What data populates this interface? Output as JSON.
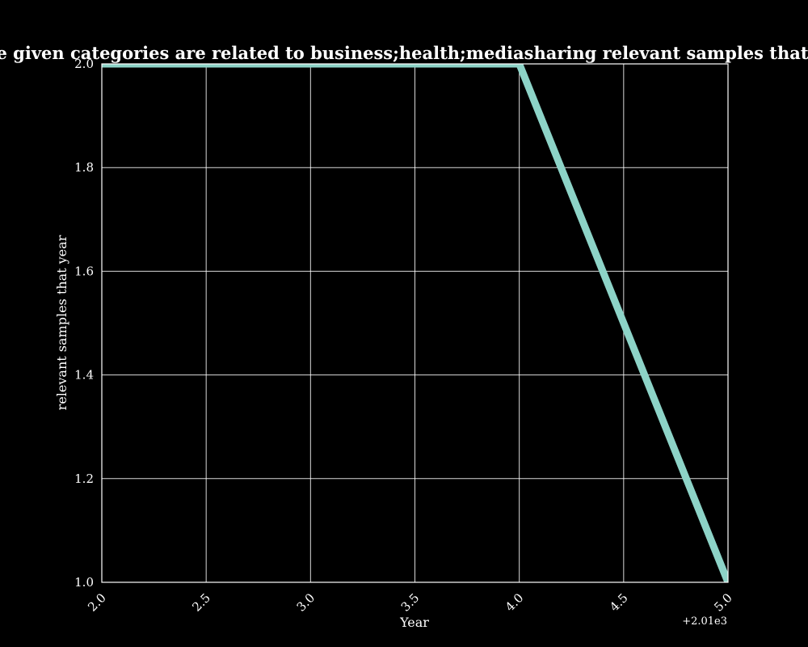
{
  "chart_data": {
    "type": "line",
    "title": "Number of samples where the given categories are related to business;health;mediasharing relevant samples that year in privacy policies by year",
    "xlabel": "Year",
    "ylabel": "relevant samples that year",
    "x_offset_label": "+2.01e3",
    "x_tick_labels": [
      "2.0",
      "2.5",
      "3.0",
      "3.5",
      "4.0",
      "4.5",
      "5.0"
    ],
    "y_tick_labels": [
      "1.0",
      "1.2",
      "1.4",
      "1.6",
      "1.8",
      "2.0"
    ],
    "xlim": [
      2.0,
      5.0
    ],
    "ylim": [
      1.0,
      2.0
    ],
    "grid": true,
    "background": "#000000",
    "series": [
      {
        "x": [
          2012,
          2013,
          2014,
          2015
        ],
        "y": [
          2,
          2,
          2,
          1
        ],
        "color": "#8dd3c7"
      }
    ]
  }
}
